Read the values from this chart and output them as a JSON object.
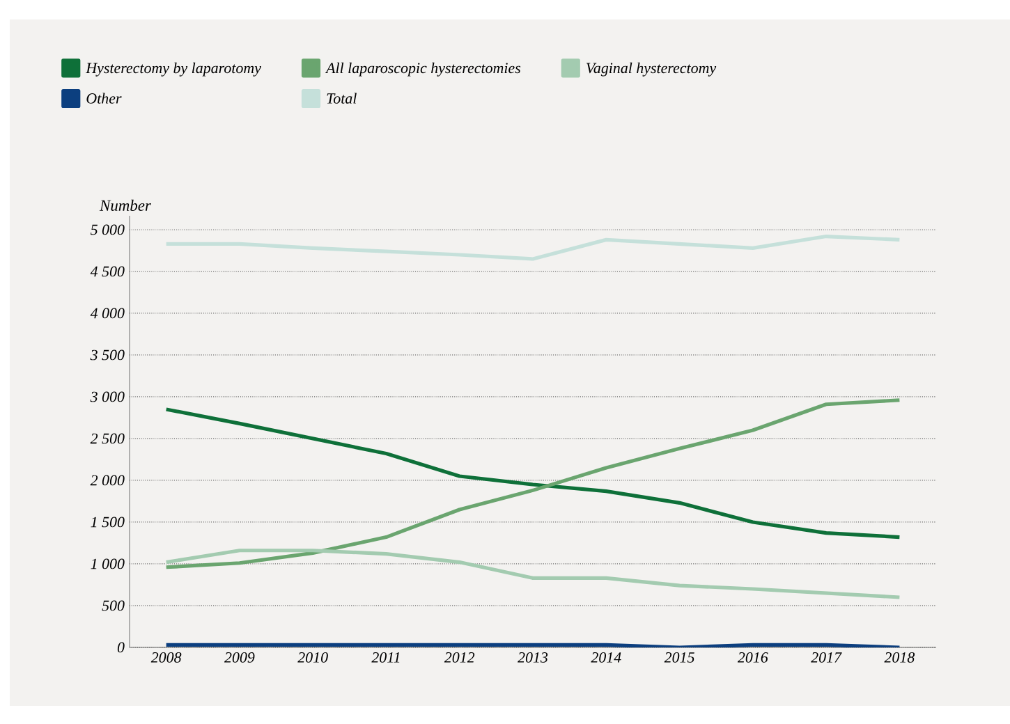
{
  "chart_data": {
    "type": "line",
    "ylabel": "Number",
    "x": [
      2008,
      2009,
      2010,
      2011,
      2012,
      2013,
      2014,
      2015,
      2016,
      2017,
      2018
    ],
    "xlim": [
      2007.5,
      2018.5
    ],
    "xticks": [
      2008,
      2009,
      2010,
      2011,
      2012,
      2013,
      2014,
      2015,
      2016,
      2017,
      2018
    ],
    "ylim": [
      0,
      5000
    ],
    "yticks": [
      0,
      500,
      {
        "value": 1000,
        "label": "1 000"
      },
      {
        "value": 1500,
        "label": "1 500"
      },
      {
        "value": 2000,
        "label": "2 000"
      },
      {
        "value": 2500,
        "label": "2 500"
      },
      {
        "value": 3000,
        "label": "3 000"
      },
      {
        "value": 3500,
        "label": "3 500"
      },
      {
        "value": 4000,
        "label": "4 000"
      },
      {
        "value": 4500,
        "label": "4 500"
      },
      {
        "value": 5000,
        "label": "5 000"
      }
    ],
    "grid": "y",
    "legend": "top left",
    "marker": "none",
    "line_style": "solid",
    "series": [
      {
        "name": "Hysterectomy by laparotomy",
        "color": "#0e7039",
        "values": [
          2850,
          2680,
          2500,
          2320,
          2050,
          1950,
          1870,
          1730,
          1500,
          1370,
          1320
        ]
      },
      {
        "name": "All laparoscopic hysterectomies",
        "color": "#6aa56f",
        "values": [
          960,
          1010,
          1130,
          1320,
          1650,
          1880,
          2150,
          2380,
          2600,
          2910,
          2960
        ]
      },
      {
        "name": "Vaginal hysterectomy",
        "color": "#a3cbb0",
        "values": [
          1020,
          1160,
          1160,
          1120,
          1020,
          830,
          830,
          740,
          700,
          650,
          600
        ]
      },
      {
        "name": "Other",
        "color": "#0c3f7f",
        "values": [
          30,
          30,
          30,
          30,
          30,
          30,
          30,
          0,
          30,
          30,
          0
        ]
      },
      {
        "name": "Total",
        "color": "#c5e0da",
        "values": [
          4830,
          4830,
          4780,
          4740,
          4700,
          4650,
          4880,
          4830,
          4780,
          4920,
          4880
        ]
      }
    ]
  }
}
